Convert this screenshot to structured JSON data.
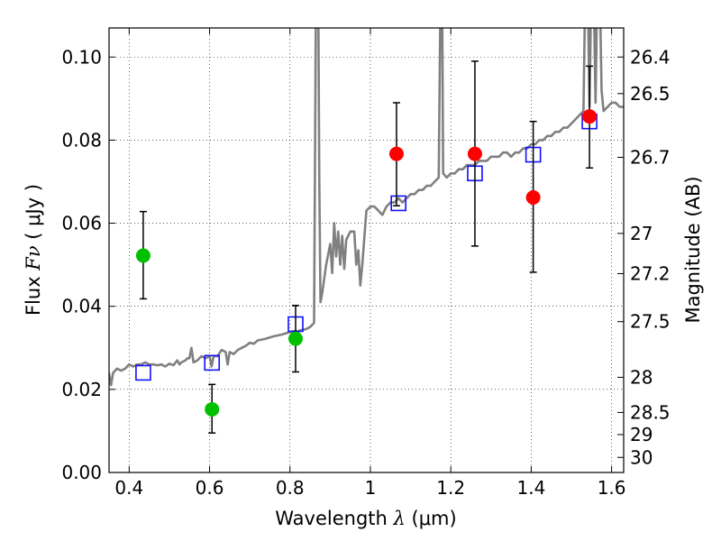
{
  "chart_data": {
    "type": "scatter",
    "xlabel": {
      "prefix": "Wavelength  ",
      "symbol": "λ",
      "unit": " (μm)"
    },
    "ylabel": {
      "prefix": "Flux  ",
      "symbol": "Fν",
      "unit": "  ( μJy )"
    },
    "y2label": "Magnitude (AB)",
    "xlim": [
      0.35,
      1.63
    ],
    "ylim": [
      0.0,
      0.107
    ],
    "grid": true,
    "x_ticks": [
      {
        "value": 0.4,
        "label": "0.4"
      },
      {
        "value": 0.6,
        "label": "0.6"
      },
      {
        "value": 0.8,
        "label": "0.8"
      },
      {
        "value": 1.0,
        "label": "1"
      },
      {
        "value": 1.2,
        "label": "1.2"
      },
      {
        "value": 1.4,
        "label": "1.4"
      },
      {
        "value": 1.6,
        "label": "1.6"
      }
    ],
    "y_ticks": [
      {
        "value": 0.0,
        "label": "0.00"
      },
      {
        "value": 0.02,
        "label": "0.02"
      },
      {
        "value": 0.04,
        "label": "0.04"
      },
      {
        "value": 0.06,
        "label": "0.06"
      },
      {
        "value": 0.08,
        "label": "0.08"
      },
      {
        "value": 0.1,
        "label": "0.10"
      }
    ],
    "mag_ticks": [
      {
        "value": 26.4,
        "label": "26.4"
      },
      {
        "value": 26.5,
        "label": "26.5"
      },
      {
        "value": 26.7,
        "label": "26.7"
      },
      {
        "value": 27.0,
        "label": "27"
      },
      {
        "value": 27.2,
        "label": "27.2"
      },
      {
        "value": 27.5,
        "label": "27.5"
      },
      {
        "value": 28.0,
        "label": "28"
      },
      {
        "value": 28.5,
        "label": "28.5"
      },
      {
        "value": 29.0,
        "label": "29"
      },
      {
        "value": 30.0,
        "label": "30"
      }
    ],
    "sed_model": {
      "color": "#808080",
      "points": [
        [
          0.35,
          0.024
        ],
        [
          0.355,
          0.021
        ],
        [
          0.36,
          0.024
        ],
        [
          0.37,
          0.025
        ],
        [
          0.38,
          0.0245
        ],
        [
          0.39,
          0.025
        ],
        [
          0.4,
          0.026
        ],
        [
          0.41,
          0.0255
        ],
        [
          0.42,
          0.026
        ],
        [
          0.43,
          0.026
        ],
        [
          0.44,
          0.0265
        ],
        [
          0.45,
          0.026
        ],
        [
          0.46,
          0.026
        ],
        [
          0.47,
          0.0258
        ],
        [
          0.48,
          0.026
        ],
        [
          0.49,
          0.0255
        ],
        [
          0.5,
          0.0262
        ],
        [
          0.51,
          0.0258
        ],
        [
          0.52,
          0.027
        ],
        [
          0.525,
          0.026
        ],
        [
          0.53,
          0.0265
        ],
        [
          0.54,
          0.027
        ],
        [
          0.545,
          0.0275
        ],
        [
          0.55,
          0.0275
        ],
        [
          0.555,
          0.03
        ],
        [
          0.56,
          0.0265
        ],
        [
          0.57,
          0.027
        ],
        [
          0.58,
          0.028
        ],
        [
          0.59,
          0.0275
        ],
        [
          0.6,
          0.028
        ],
        [
          0.605,
          0.0255
        ],
        [
          0.61,
          0.028
        ],
        [
          0.62,
          0.028
        ],
        [
          0.63,
          0.0295
        ],
        [
          0.64,
          0.029
        ],
        [
          0.645,
          0.026
        ],
        [
          0.65,
          0.029
        ],
        [
          0.66,
          0.0285
        ],
        [
          0.67,
          0.0295
        ],
        [
          0.68,
          0.03
        ],
        [
          0.69,
          0.0305
        ],
        [
          0.7,
          0.0312
        ],
        [
          0.71,
          0.031
        ],
        [
          0.72,
          0.0318
        ],
        [
          0.73,
          0.032
        ],
        [
          0.74,
          0.0322
        ],
        [
          0.75,
          0.0325
        ],
        [
          0.76,
          0.0328
        ],
        [
          0.77,
          0.033
        ],
        [
          0.78,
          0.0332
        ],
        [
          0.79,
          0.0335
        ],
        [
          0.8,
          0.0338
        ],
        [
          0.81,
          0.034
        ],
        [
          0.82,
          0.034
        ],
        [
          0.83,
          0.0343
        ],
        [
          0.84,
          0.0345
        ],
        [
          0.85,
          0.035
        ],
        [
          0.86,
          0.036
        ],
        [
          0.862,
          0.07
        ],
        [
          0.865,
          0.12
        ],
        [
          0.87,
          0.12
        ],
        [
          0.873,
          0.07
        ],
        [
          0.876,
          0.041
        ],
        [
          0.88,
          0.043
        ],
        [
          0.89,
          0.05
        ],
        [
          0.9,
          0.055
        ],
        [
          0.905,
          0.048
        ],
        [
          0.91,
          0.06
        ],
        [
          0.915,
          0.052
        ],
        [
          0.92,
          0.058
        ],
        [
          0.925,
          0.05
        ],
        [
          0.93,
          0.057
        ],
        [
          0.935,
          0.049
        ],
        [
          0.94,
          0.056
        ],
        [
          0.95,
          0.058
        ],
        [
          0.96,
          0.058
        ],
        [
          0.965,
          0.05
        ],
        [
          0.97,
          0.0535
        ],
        [
          0.975,
          0.045
        ],
        [
          0.98,
          0.05
        ],
        [
          0.99,
          0.063
        ],
        [
          1.0,
          0.064
        ],
        [
          1.01,
          0.064
        ],
        [
          1.02,
          0.063
        ],
        [
          1.03,
          0.062
        ],
        [
          1.04,
          0.064
        ],
        [
          1.05,
          0.065
        ],
        [
          1.06,
          0.065
        ],
        [
          1.07,
          0.066
        ],
        [
          1.08,
          0.065
        ],
        [
          1.09,
          0.066
        ],
        [
          1.1,
          0.067
        ],
        [
          1.11,
          0.067
        ],
        [
          1.12,
          0.068
        ],
        [
          1.13,
          0.068
        ],
        [
          1.14,
          0.069
        ],
        [
          1.15,
          0.069
        ],
        [
          1.16,
          0.07
        ],
        [
          1.17,
          0.071
        ],
        [
          1.175,
          0.12
        ],
        [
          1.178,
          0.12
        ],
        [
          1.181,
          0.072
        ],
        [
          1.19,
          0.071
        ],
        [
          1.2,
          0.072
        ],
        [
          1.21,
          0.072
        ],
        [
          1.22,
          0.073
        ],
        [
          1.23,
          0.073
        ],
        [
          1.24,
          0.074
        ],
        [
          1.25,
          0.074
        ],
        [
          1.26,
          0.074
        ],
        [
          1.27,
          0.075
        ],
        [
          1.28,
          0.075
        ],
        [
          1.29,
          0.075
        ],
        [
          1.3,
          0.076
        ],
        [
          1.31,
          0.076
        ],
        [
          1.32,
          0.076
        ],
        [
          1.33,
          0.077
        ],
        [
          1.34,
          0.077
        ],
        [
          1.35,
          0.076
        ],
        [
          1.36,
          0.077
        ],
        [
          1.37,
          0.077
        ],
        [
          1.38,
          0.078
        ],
        [
          1.39,
          0.078
        ],
        [
          1.4,
          0.079
        ],
        [
          1.41,
          0.079
        ],
        [
          1.42,
          0.08
        ],
        [
          1.43,
          0.08
        ],
        [
          1.44,
          0.081
        ],
        [
          1.45,
          0.081
        ],
        [
          1.46,
          0.082
        ],
        [
          1.47,
          0.082
        ],
        [
          1.48,
          0.083
        ],
        [
          1.49,
          0.083
        ],
        [
          1.5,
          0.084
        ],
        [
          1.51,
          0.085
        ],
        [
          1.52,
          0.086
        ],
        [
          1.53,
          0.087
        ],
        [
          1.535,
          0.12
        ],
        [
          1.54,
          0.12
        ],
        [
          1.545,
          0.088
        ],
        [
          1.55,
          0.12
        ],
        [
          1.555,
          0.12
        ],
        [
          1.56,
          0.089
        ],
        [
          1.565,
          0.12
        ],
        [
          1.57,
          0.12
        ],
        [
          1.575,
          0.092
        ],
        [
          1.58,
          0.087
        ],
        [
          1.59,
          0.088
        ],
        [
          1.6,
          0.089
        ],
        [
          1.61,
          0.089
        ],
        [
          1.62,
          0.088
        ],
        [
          1.63,
          0.088
        ]
      ]
    },
    "model_bands": {
      "color": "#1010ff",
      "points": [
        {
          "x": 0.435,
          "y": 0.024
        },
        {
          "x": 0.606,
          "y": 0.0264
        },
        {
          "x": 0.814,
          "y": 0.0357
        },
        {
          "x": 1.07,
          "y": 0.0648
        },
        {
          "x": 1.26,
          "y": 0.072
        },
        {
          "x": 1.405,
          "y": 0.0765
        },
        {
          "x": 1.545,
          "y": 0.0845
        }
      ]
    },
    "photometry": [
      {
        "x": 0.435,
        "y": 0.0522,
        "err_low": 0.0418,
        "err_high": 0.0628,
        "color": "#00c000"
      },
      {
        "x": 0.606,
        "y": 0.0152,
        "err_low": 0.0095,
        "err_high": 0.0212,
        "color": "#00c000"
      },
      {
        "x": 0.814,
        "y": 0.0322,
        "err_low": 0.0242,
        "err_high": 0.0402,
        "color": "#00c000"
      },
      {
        "x": 1.065,
        "y": 0.0767,
        "err_low": 0.0642,
        "err_high": 0.089,
        "color": "#ff0000"
      },
      {
        "x": 1.26,
        "y": 0.0767,
        "err_low": 0.0545,
        "err_high": 0.099,
        "color": "#ff0000"
      },
      {
        "x": 1.405,
        "y": 0.0662,
        "err_low": 0.0482,
        "err_high": 0.0845,
        "color": "#ff0000"
      },
      {
        "x": 1.545,
        "y": 0.0857,
        "err_low": 0.0733,
        "err_high": 0.0978,
        "color": "#ff0000"
      }
    ]
  }
}
